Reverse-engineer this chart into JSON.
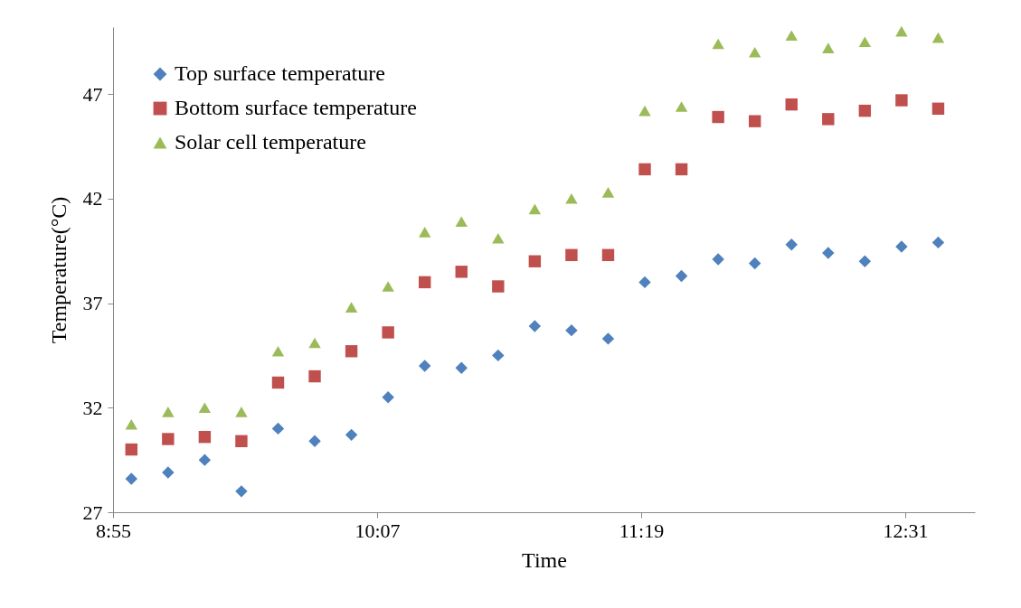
{
  "chart_data": {
    "type": "scatter",
    "xlabel": "Time",
    "ylabel": "Temperature(°C)",
    "x": [
      9.0,
      9.1667,
      9.3333,
      9.5,
      9.6667,
      9.8333,
      10.0,
      10.1667,
      10.3333,
      10.5,
      10.6667,
      10.8333,
      11.0,
      11.1667,
      11.3333,
      11.5,
      11.6667,
      11.8333,
      12.0,
      12.1667,
      12.3333,
      12.5,
      12.6667
    ],
    "series": [
      {
        "name": "Top surface temperature",
        "color": "#4f81bd",
        "marker": "diamond",
        "values": [
          28.6,
          28.9,
          29.5,
          28.0,
          31.0,
          30.4,
          30.7,
          32.5,
          34.0,
          33.9,
          34.5,
          35.9,
          35.7,
          35.3,
          38.0,
          38.3,
          39.1,
          38.9,
          39.8,
          39.4,
          39.0,
          39.7,
          39.9
        ]
      },
      {
        "name": "Bottom surface temperature",
        "color": "#c0504d",
        "marker": "square",
        "values": [
          30.0,
          30.5,
          30.6,
          30.4,
          33.2,
          33.5,
          34.7,
          35.6,
          38.0,
          38.5,
          37.8,
          39.0,
          39.3,
          39.3,
          43.4,
          43.4,
          45.9,
          45.7,
          46.5,
          45.8,
          46.2,
          46.7,
          46.3
        ]
      },
      {
        "name": "Solar cell temperature",
        "color": "#9bbb59",
        "marker": "triangle",
        "values": [
          31.2,
          31.8,
          32.0,
          31.8,
          34.7,
          35.1,
          36.8,
          37.8,
          40.4,
          40.9,
          40.1,
          41.5,
          42.0,
          42.3,
          46.2,
          46.4,
          49.4,
          49.0,
          49.8,
          49.2,
          49.5,
          50.0,
          49.7
        ]
      }
    ],
    "xlim": [
      8.9167,
      12.8333
    ],
    "xticks": [
      {
        "value": 8.9167,
        "label": "8:55"
      },
      {
        "value": 10.1167,
        "label": "10:07"
      },
      {
        "value": 11.3167,
        "label": "11:19"
      },
      {
        "value": 12.5167,
        "label": "12:31"
      }
    ],
    "ylim": [
      27,
      50.2
    ],
    "yticks": [
      27,
      32,
      37,
      42,
      47
    ],
    "legend": "top left",
    "grid": false
  }
}
